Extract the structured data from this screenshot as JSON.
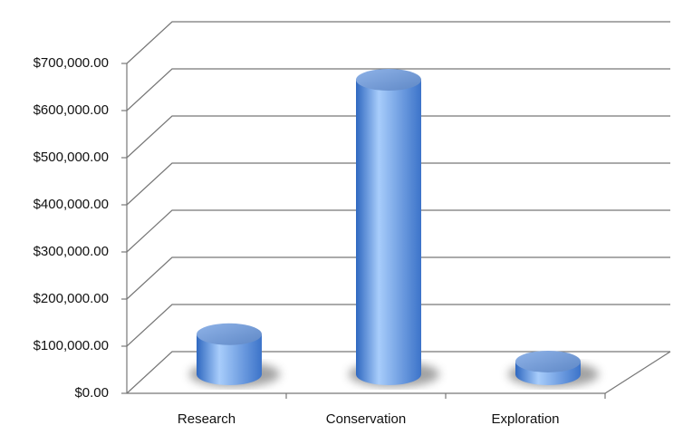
{
  "chart_data": {
    "type": "bar3d",
    "categories": [
      "Research",
      "Conservation",
      "Exploration"
    ],
    "values": [
      85000,
      625000,
      27000
    ],
    "color": "#5b8fd9",
    "ylim": [
      0,
      700000
    ],
    "yticks": [
      {
        "value": 0,
        "label": "$0.00"
      },
      {
        "value": 100000,
        "label": "$100,000.00"
      },
      {
        "value": 200000,
        "label": "$200,000.00"
      },
      {
        "value": 300000,
        "label": "$300,000.00"
      },
      {
        "value": 400000,
        "label": "$400,000.00"
      },
      {
        "value": 500000,
        "label": "$500,000.00"
      },
      {
        "value": 600000,
        "label": "$600,000.00"
      },
      {
        "value": 700000,
        "label": "$700,000.00"
      }
    ],
    "grid": true
  }
}
